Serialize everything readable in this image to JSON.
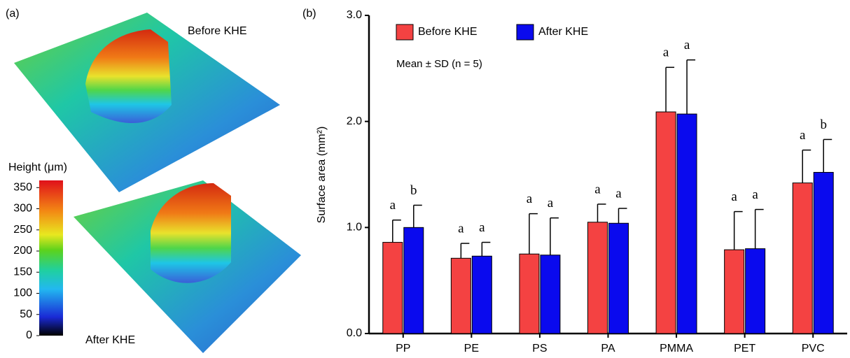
{
  "chart_data": [
    {
      "type": "surface",
      "panel_label": "(a)",
      "labels": [
        "Before KHE",
        "After KHE"
      ],
      "colorbar_title": "Height (μm)",
      "ylim": [
        0,
        367
      ],
      "yticks": [
        0,
        50,
        100,
        150,
        200,
        250,
        300,
        350
      ]
    },
    {
      "type": "bar",
      "panel_label": "(b)",
      "y_label": "Surface area (mm²)",
      "annotation": "Mean ± SD (n = 5)",
      "categories": [
        "PP",
        "PE",
        "PS",
        "PA",
        "PMMA",
        "PET",
        "PVC"
      ],
      "ylim": [
        0,
        3
      ],
      "yticks": [
        {
          "value": 0,
          "label": "0.0"
        },
        {
          "value": 1,
          "label": "1.0"
        },
        {
          "value": 2,
          "label": "2.0"
        },
        {
          "value": 3,
          "label": "3.0"
        }
      ],
      "series": [
        {
          "name": "Before KHE",
          "color": "#f44242",
          "values": [
            0.86,
            0.71,
            0.75,
            1.05,
            2.09,
            0.79,
            1.42
          ],
          "errors": [
            0.21,
            0.14,
            0.38,
            0.17,
            0.42,
            0.36,
            0.31
          ],
          "letters": [
            "a",
            "a",
            "a",
            "a",
            "a",
            "a",
            "a"
          ]
        },
        {
          "name": "After KHE",
          "color": "#0a0aee",
          "values": [
            1.0,
            0.73,
            0.74,
            1.04,
            2.07,
            0.8,
            1.52
          ],
          "errors": [
            0.21,
            0.13,
            0.35,
            0.14,
            0.51,
            0.37,
            0.31
          ],
          "letters": [
            "b",
            "a",
            "a",
            "a",
            "a",
            "a",
            "b"
          ]
        }
      ]
    }
  ]
}
